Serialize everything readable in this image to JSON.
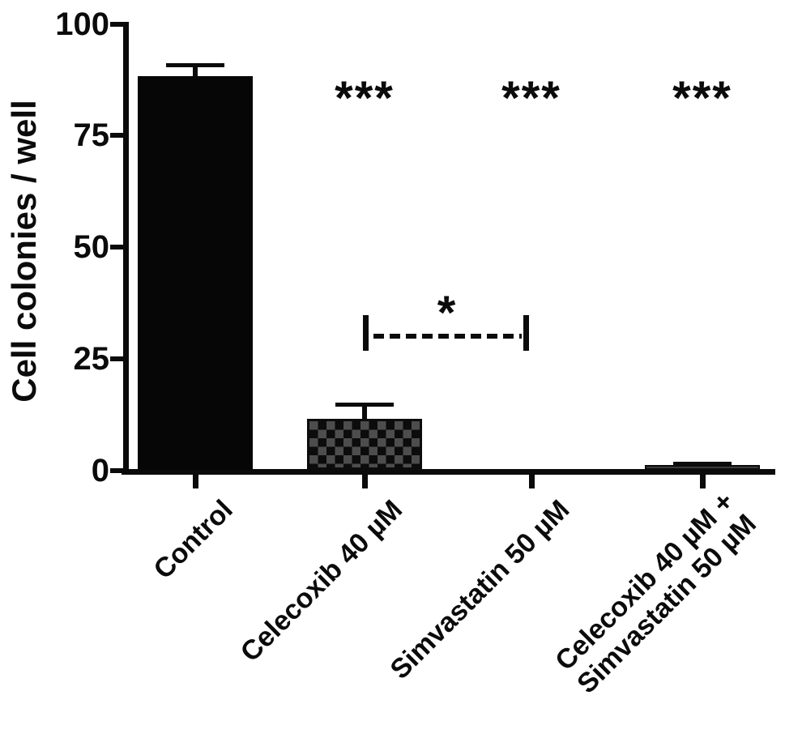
{
  "chart_data": {
    "type": "bar",
    "title": "",
    "ylabel": "Cell colonies / well",
    "xlabel": "",
    "ylim": [
      0,
      100
    ],
    "yticks": [
      100,
      75,
      50,
      25,
      0
    ],
    "ytick_labels": [
      "100",
      "75",
      "50",
      "25",
      "0"
    ],
    "categories": [
      "Control",
      "Celecoxib 40 µM",
      "Simvastatin 50 µM",
      "Celecoxib 40 µM +\nSimvastatin 50 µM"
    ],
    "values": [
      88,
      11.5,
      0,
      1
    ],
    "errors_upper": [
      3,
      3.5,
      0,
      0.8
    ],
    "bar_patterns": [
      "solid-black",
      "checkerboard",
      "none",
      "solid-dark-gray"
    ],
    "significance_above_bars": [
      "",
      "***",
      "***",
      "***"
    ],
    "comparison_bracket": {
      "between": [
        "Celecoxib 40 µM",
        "Simvastatin 50 µM"
      ],
      "label": "*",
      "y_value": 30,
      "line_style": "dashed"
    },
    "grid": false,
    "legend": "none",
    "bar_color": "#060606",
    "axis_color": "#0b0b0b"
  }
}
